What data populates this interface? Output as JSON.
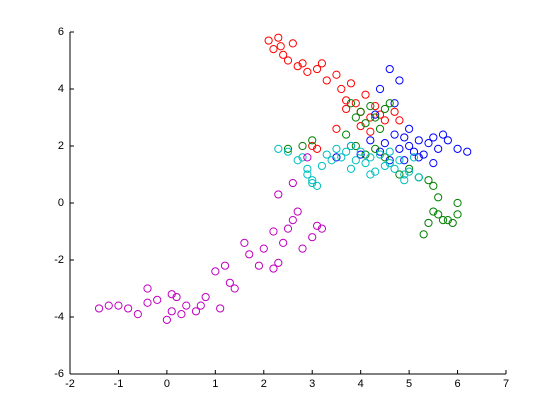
{
  "chart_data": {
    "type": "scatter",
    "xlim": [
      -2,
      7
    ],
    "xticks": [
      -2,
      -1,
      0,
      1,
      2,
      3,
      4,
      5,
      6,
      7
    ],
    "ylim": [
      -6,
      6
    ],
    "yticks": [
      -6,
      -4,
      -2,
      0,
      2,
      4,
      6
    ],
    "marker": "circle",
    "series": [
      {
        "color": "#ff0000",
        "x": [
          2.1,
          2.2,
          2.3,
          2.35,
          2.4,
          2.5,
          2.6,
          2.7,
          2.8,
          2.9,
          3.1,
          3.2,
          3.3,
          3.5,
          3.6,
          3.7,
          3.8,
          3.9,
          4.0,
          4.1,
          4.2,
          4.3,
          4.4,
          4.5,
          4.7,
          4.8,
          3.0,
          3.1,
          3.5,
          3.7,
          4.0,
          4.2
        ],
        "values": [
          5.7,
          5.4,
          5.8,
          5.5,
          5.2,
          5.0,
          5.6,
          4.8,
          4.9,
          4.6,
          4.7,
          4.9,
          4.3,
          4.5,
          4.0,
          3.6,
          4.2,
          3.5,
          3.2,
          3.8,
          3.0,
          3.4,
          3.1,
          2.9,
          3.2,
          2.9,
          2.0,
          1.9,
          2.6,
          3.3,
          2.7,
          2.5
        ]
      },
      {
        "color": "#0000ff",
        "x": [
          3.5,
          3.8,
          4.0,
          4.2,
          4.4,
          4.5,
          4.6,
          4.7,
          4.8,
          4.9,
          5.0,
          5.1,
          5.2,
          5.3,
          5.4,
          5.5,
          5.6,
          5.7,
          5.8,
          6.0,
          6.2,
          4.6,
          4.7,
          4.8,
          4.4,
          4.3,
          5.0,
          5.2,
          4.9,
          5.5
        ],
        "values": [
          1.6,
          2.0,
          1.7,
          2.2,
          1.8,
          2.1,
          1.5,
          2.4,
          1.9,
          2.3,
          2.0,
          1.8,
          2.2,
          1.7,
          2.1,
          2.3,
          1.9,
          2.4,
          2.2,
          1.9,
          1.8,
          4.7,
          3.5,
          4.3,
          4.0,
          3.1,
          2.6,
          1.6,
          1.5,
          1.4
        ]
      },
      {
        "color": "#008000",
        "x": [
          3.8,
          3.9,
          4.0,
          4.1,
          4.2,
          4.3,
          4.4,
          4.5,
          4.6,
          3.7,
          3.9,
          4.1,
          4.3,
          4.5,
          2.5,
          2.8,
          3.0,
          5.0,
          5.2,
          5.4,
          5.5,
          5.6,
          5.5,
          5.4,
          5.3,
          5.6,
          5.8,
          5.9,
          6.0,
          6.0,
          5.7,
          4.8
        ],
        "values": [
          3.5,
          3.0,
          3.2,
          2.8,
          3.4,
          3.0,
          2.6,
          3.3,
          3.5,
          2.4,
          2.0,
          1.7,
          1.9,
          1.6,
          1.9,
          2.0,
          2.2,
          1.2,
          0.9,
          0.8,
          0.6,
          0.2,
          -0.3,
          -0.7,
          -1.1,
          -0.4,
          -0.6,
          -0.7,
          -0.4,
          0.0,
          -0.6,
          1.0
        ]
      },
      {
        "color": "#00bfbf",
        "x": [
          2.3,
          2.5,
          2.7,
          2.8,
          2.9,
          3.0,
          3.1,
          3.2,
          3.4,
          3.5,
          3.6,
          3.7,
          3.8,
          3.9,
          4.0,
          4.1,
          4.2,
          4.3,
          4.4,
          4.5,
          4.6,
          4.7,
          4.8,
          4.9,
          5.0,
          5.1,
          5.2,
          2.9,
          3.0,
          3.3,
          3.8,
          4.2,
          4.6,
          4.9
        ],
        "values": [
          1.9,
          1.8,
          1.5,
          1.6,
          1.0,
          0.7,
          0.6,
          1.3,
          1.5,
          1.9,
          1.6,
          1.8,
          2.0,
          1.5,
          1.8,
          1.4,
          1.6,
          1.1,
          1.7,
          1.3,
          1.8,
          1.2,
          1.5,
          0.8,
          1.1,
          1.6,
          0.9,
          1.2,
          0.8,
          1.7,
          1.2,
          1.0,
          1.4,
          1.0
        ]
      },
      {
        "color": "#bf00bf",
        "x": [
          -1.4,
          -1.2,
          -1.0,
          -0.8,
          -0.6,
          -0.4,
          -0.2,
          0.0,
          0.1,
          0.2,
          0.3,
          0.4,
          0.6,
          0.8,
          1.0,
          1.1,
          1.2,
          1.4,
          1.6,
          1.7,
          1.9,
          2.0,
          2.2,
          2.3,
          2.4,
          2.5,
          2.6,
          2.7,
          2.8,
          3.0,
          3.1,
          3.2,
          2.3,
          2.6,
          2.9,
          -0.4,
          0.1,
          0.7,
          1.3,
          2.2
        ],
        "values": [
          -3.7,
          -3.6,
          -3.6,
          -3.7,
          -3.9,
          -3.5,
          -3.4,
          -4.1,
          -3.8,
          -3.3,
          -3.9,
          -3.6,
          -3.8,
          -3.3,
          -2.4,
          -3.7,
          -2.2,
          -3.0,
          -1.4,
          -1.8,
          -2.2,
          -1.6,
          -1.0,
          -2.1,
          -1.4,
          -0.9,
          -0.6,
          -0.3,
          -1.6,
          -1.2,
          -0.8,
          -0.9,
          0.3,
          0.7,
          1.6,
          -3.0,
          -3.2,
          -3.6,
          -2.8,
          -2.3
        ]
      }
    ]
  }
}
